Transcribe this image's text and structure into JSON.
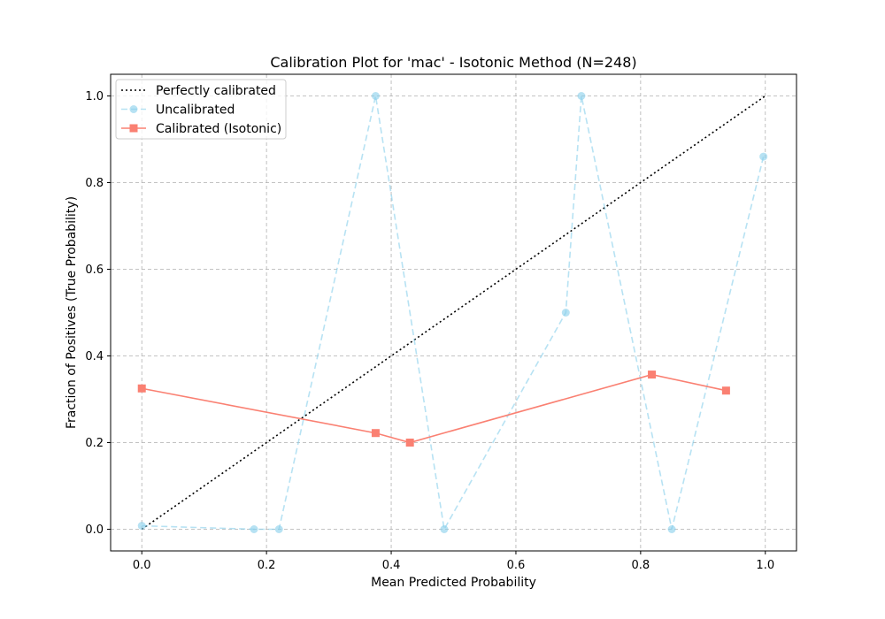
{
  "chart_data": {
    "type": "line",
    "title": "Calibration Plot for 'mac' - Isotonic Method (N=248)",
    "xlabel": "Mean Predicted Probability",
    "ylabel": "Fraction of Positives (True Probability)",
    "xlim": [
      -0.05,
      1.05
    ],
    "ylim": [
      -0.05,
      1.05
    ],
    "xticks": [
      0.0,
      0.2,
      0.4,
      0.6,
      0.8,
      1.0
    ],
    "yticks": [
      0.0,
      0.2,
      0.4,
      0.6,
      0.8,
      1.0
    ],
    "xtick_labels": [
      "0.0",
      "0.2",
      "0.4",
      "0.6",
      "0.8",
      "1.0"
    ],
    "ytick_labels": [
      "0.0",
      "0.2",
      "0.4",
      "0.6",
      "0.8",
      "1.0"
    ],
    "grid": true,
    "legend_position": "top-left",
    "series": [
      {
        "name": "Perfectly calibrated",
        "color": "#000000",
        "style": "dotted",
        "marker": "none",
        "x": [
          0.0,
          1.0
        ],
        "y": [
          0.0,
          1.0
        ]
      },
      {
        "name": "Uncalibrated",
        "color": "#87ceeb",
        "style": "dashed",
        "marker": "circle",
        "x": [
          0.0,
          0.18,
          0.22,
          0.375,
          0.485,
          0.68,
          0.705,
          0.85,
          0.997
        ],
        "y": [
          0.008,
          0.0,
          0.0,
          1.0,
          0.0,
          0.5,
          1.0,
          0.0,
          0.86
        ]
      },
      {
        "name": "Calibrated (Isotonic)",
        "color": "#fa8072",
        "style": "solid",
        "marker": "square",
        "x": [
          0.0,
          0.375,
          0.43,
          0.818,
          0.937
        ],
        "y": [
          0.325,
          0.222,
          0.2,
          0.357,
          0.32
        ]
      }
    ]
  }
}
